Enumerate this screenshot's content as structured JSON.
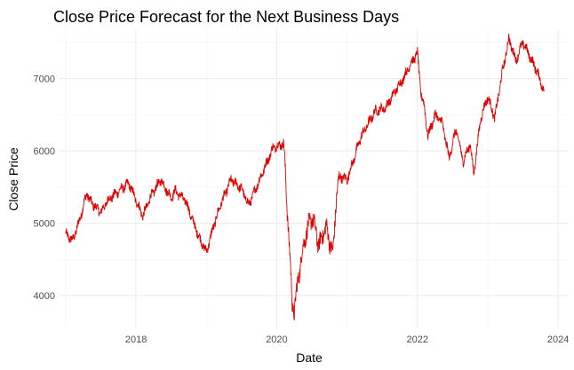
{
  "chart_data": {
    "type": "line",
    "title": "Close Price Forecast for the Next Business Days",
    "xlabel": "Date",
    "ylabel": "Close Price",
    "xlim": [
      2016.9,
      2024.15
    ],
    "ylim": [
      3560,
      7680
    ],
    "x_ticks": [
      2018,
      2020,
      2022,
      2024
    ],
    "x_tick_labels": [
      "2018",
      "2020",
      "2022",
      "2024"
    ],
    "y_ticks": [
      4000,
      5000,
      6000,
      7000
    ],
    "y_tick_labels": [
      "4000",
      "5000",
      "6000",
      "7000"
    ],
    "grid": true,
    "series": [
      {
        "name": "Close Price",
        "color": "#e00000",
        "x": [
          2017.0,
          2017.1,
          2017.2,
          2017.3,
          2017.35,
          2017.5,
          2017.6,
          2017.8,
          2017.9,
          2018.05,
          2018.1,
          2018.2,
          2018.35,
          2018.5,
          2018.55,
          2018.7,
          2018.8,
          2018.9,
          2019.0,
          2019.1,
          2019.2,
          2019.35,
          2019.5,
          2019.6,
          2019.8,
          2019.95,
          2020.1,
          2020.15,
          2020.2,
          2020.22,
          2020.25,
          2020.3,
          2020.4,
          2020.5,
          2020.6,
          2020.7,
          2020.8,
          2020.85,
          2020.9,
          2021.0,
          2021.1,
          2021.2,
          2021.4,
          2021.55,
          2021.7,
          2021.8,
          2021.9,
          2022.0,
          2022.05,
          2022.1,
          2022.15,
          2022.25,
          2022.35,
          2022.45,
          2022.55,
          2022.65,
          2022.75,
          2022.8,
          2022.9,
          2023.0,
          2023.1,
          2023.2,
          2023.3,
          2023.4,
          2023.5,
          2023.6,
          2023.7,
          2023.8
        ],
        "values": [
          4850,
          4760,
          5050,
          5420,
          5300,
          5150,
          5320,
          5480,
          5550,
          5200,
          5100,
          5350,
          5600,
          5350,
          5450,
          5320,
          5050,
          4800,
          4600,
          4950,
          5250,
          5600,
          5480,
          5250,
          5700,
          6050,
          6100,
          5200,
          4300,
          3900,
          3780,
          4200,
          4800,
          5100,
          4700,
          4950,
          4570,
          5400,
          5650,
          5600,
          5900,
          6200,
          6550,
          6600,
          6850,
          7000,
          7200,
          7350,
          6800,
          6600,
          6200,
          6500,
          6400,
          5900,
          6300,
          5850,
          6100,
          5680,
          6450,
          6750,
          6450,
          7050,
          7550,
          7250,
          7500,
          7300,
          7100,
          6820
        ]
      }
    ]
  }
}
